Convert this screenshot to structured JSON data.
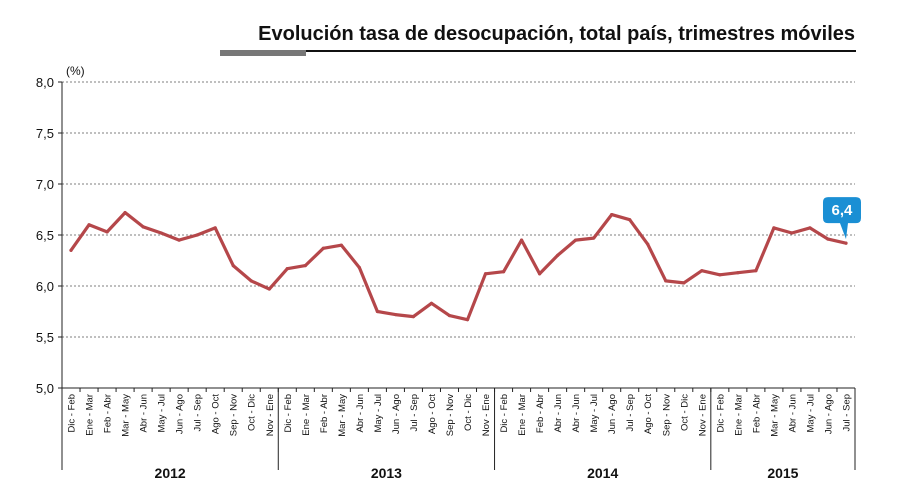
{
  "chart_data": {
    "type": "line",
    "title": "Evolución tasa de desocupación, total país, trimestres móviles",
    "y_unit": "(%)",
    "ylim": [
      5.0,
      8.0
    ],
    "y_ticks": [
      "5,0",
      "5,5",
      "6,0",
      "6,5",
      "7,0",
      "7,5",
      "8,0"
    ],
    "y_tick_values": [
      5.0,
      5.5,
      6.0,
      6.5,
      7.0,
      7.5,
      8.0
    ],
    "grid": "horizontal-dashed",
    "line_color": "#b5474a",
    "categories": [
      "Dic - Feb",
      "Ene - Mar",
      "Feb - Abr",
      "Mar - May",
      "Abr - Jun",
      "May - Jul",
      "Jun - Ago",
      "Jul - Sep",
      "Ago - Oct",
      "Sep - Nov",
      "Oct - Dic",
      "Nov - Ene",
      "Dic - Feb",
      "Ene - Mar",
      "Feb - Abr",
      "Mar - May",
      "Abr - Jun",
      "May - Jul",
      "Jun - Ago",
      "Jul - Sep",
      "Ago - Oct",
      "Sep - Nov",
      "Oct - Dic",
      "Nov - Ene",
      "Dic - Feb",
      "Ene - Mar",
      "Feb - Abr",
      "Abr - Jun",
      "Abr - Jun",
      "May - Jul",
      "Jun - Ago",
      "Jul - Sep",
      "Ago - Oct",
      "Sep - Nov",
      "Oct - Dic",
      "Nov - Ene",
      "Dic - Feb",
      "Ene - Mar",
      "Feb - Abr",
      "Mar - May",
      "Abr - Jun",
      "May - Jul",
      "Jun - Ago",
      "Jul - Sep"
    ],
    "years": [
      {
        "label": "2012",
        "count": 12
      },
      {
        "label": "2013",
        "count": 12
      },
      {
        "label": "2014",
        "count": 12
      },
      {
        "label": "2015",
        "count": 8
      }
    ],
    "series": [
      {
        "values": [
          6.35,
          6.6,
          6.53,
          6.72,
          6.58,
          6.52,
          6.45,
          6.5,
          6.57,
          6.2,
          6.05,
          5.97,
          6.17,
          6.2,
          6.37,
          6.4,
          6.18,
          5.75,
          5.72,
          5.7,
          5.83,
          5.71,
          5.67,
          6.12,
          6.14,
          6.45,
          6.12,
          6.3,
          6.45,
          6.47,
          6.7,
          6.65,
          6.41,
          6.05,
          6.03,
          6.15,
          6.11,
          6.13,
          6.15,
          6.57,
          6.52,
          6.57,
          6.46,
          6.42
        ]
      }
    ],
    "callout": {
      "label": "6,4",
      "color": "#1a8fd4"
    }
  }
}
